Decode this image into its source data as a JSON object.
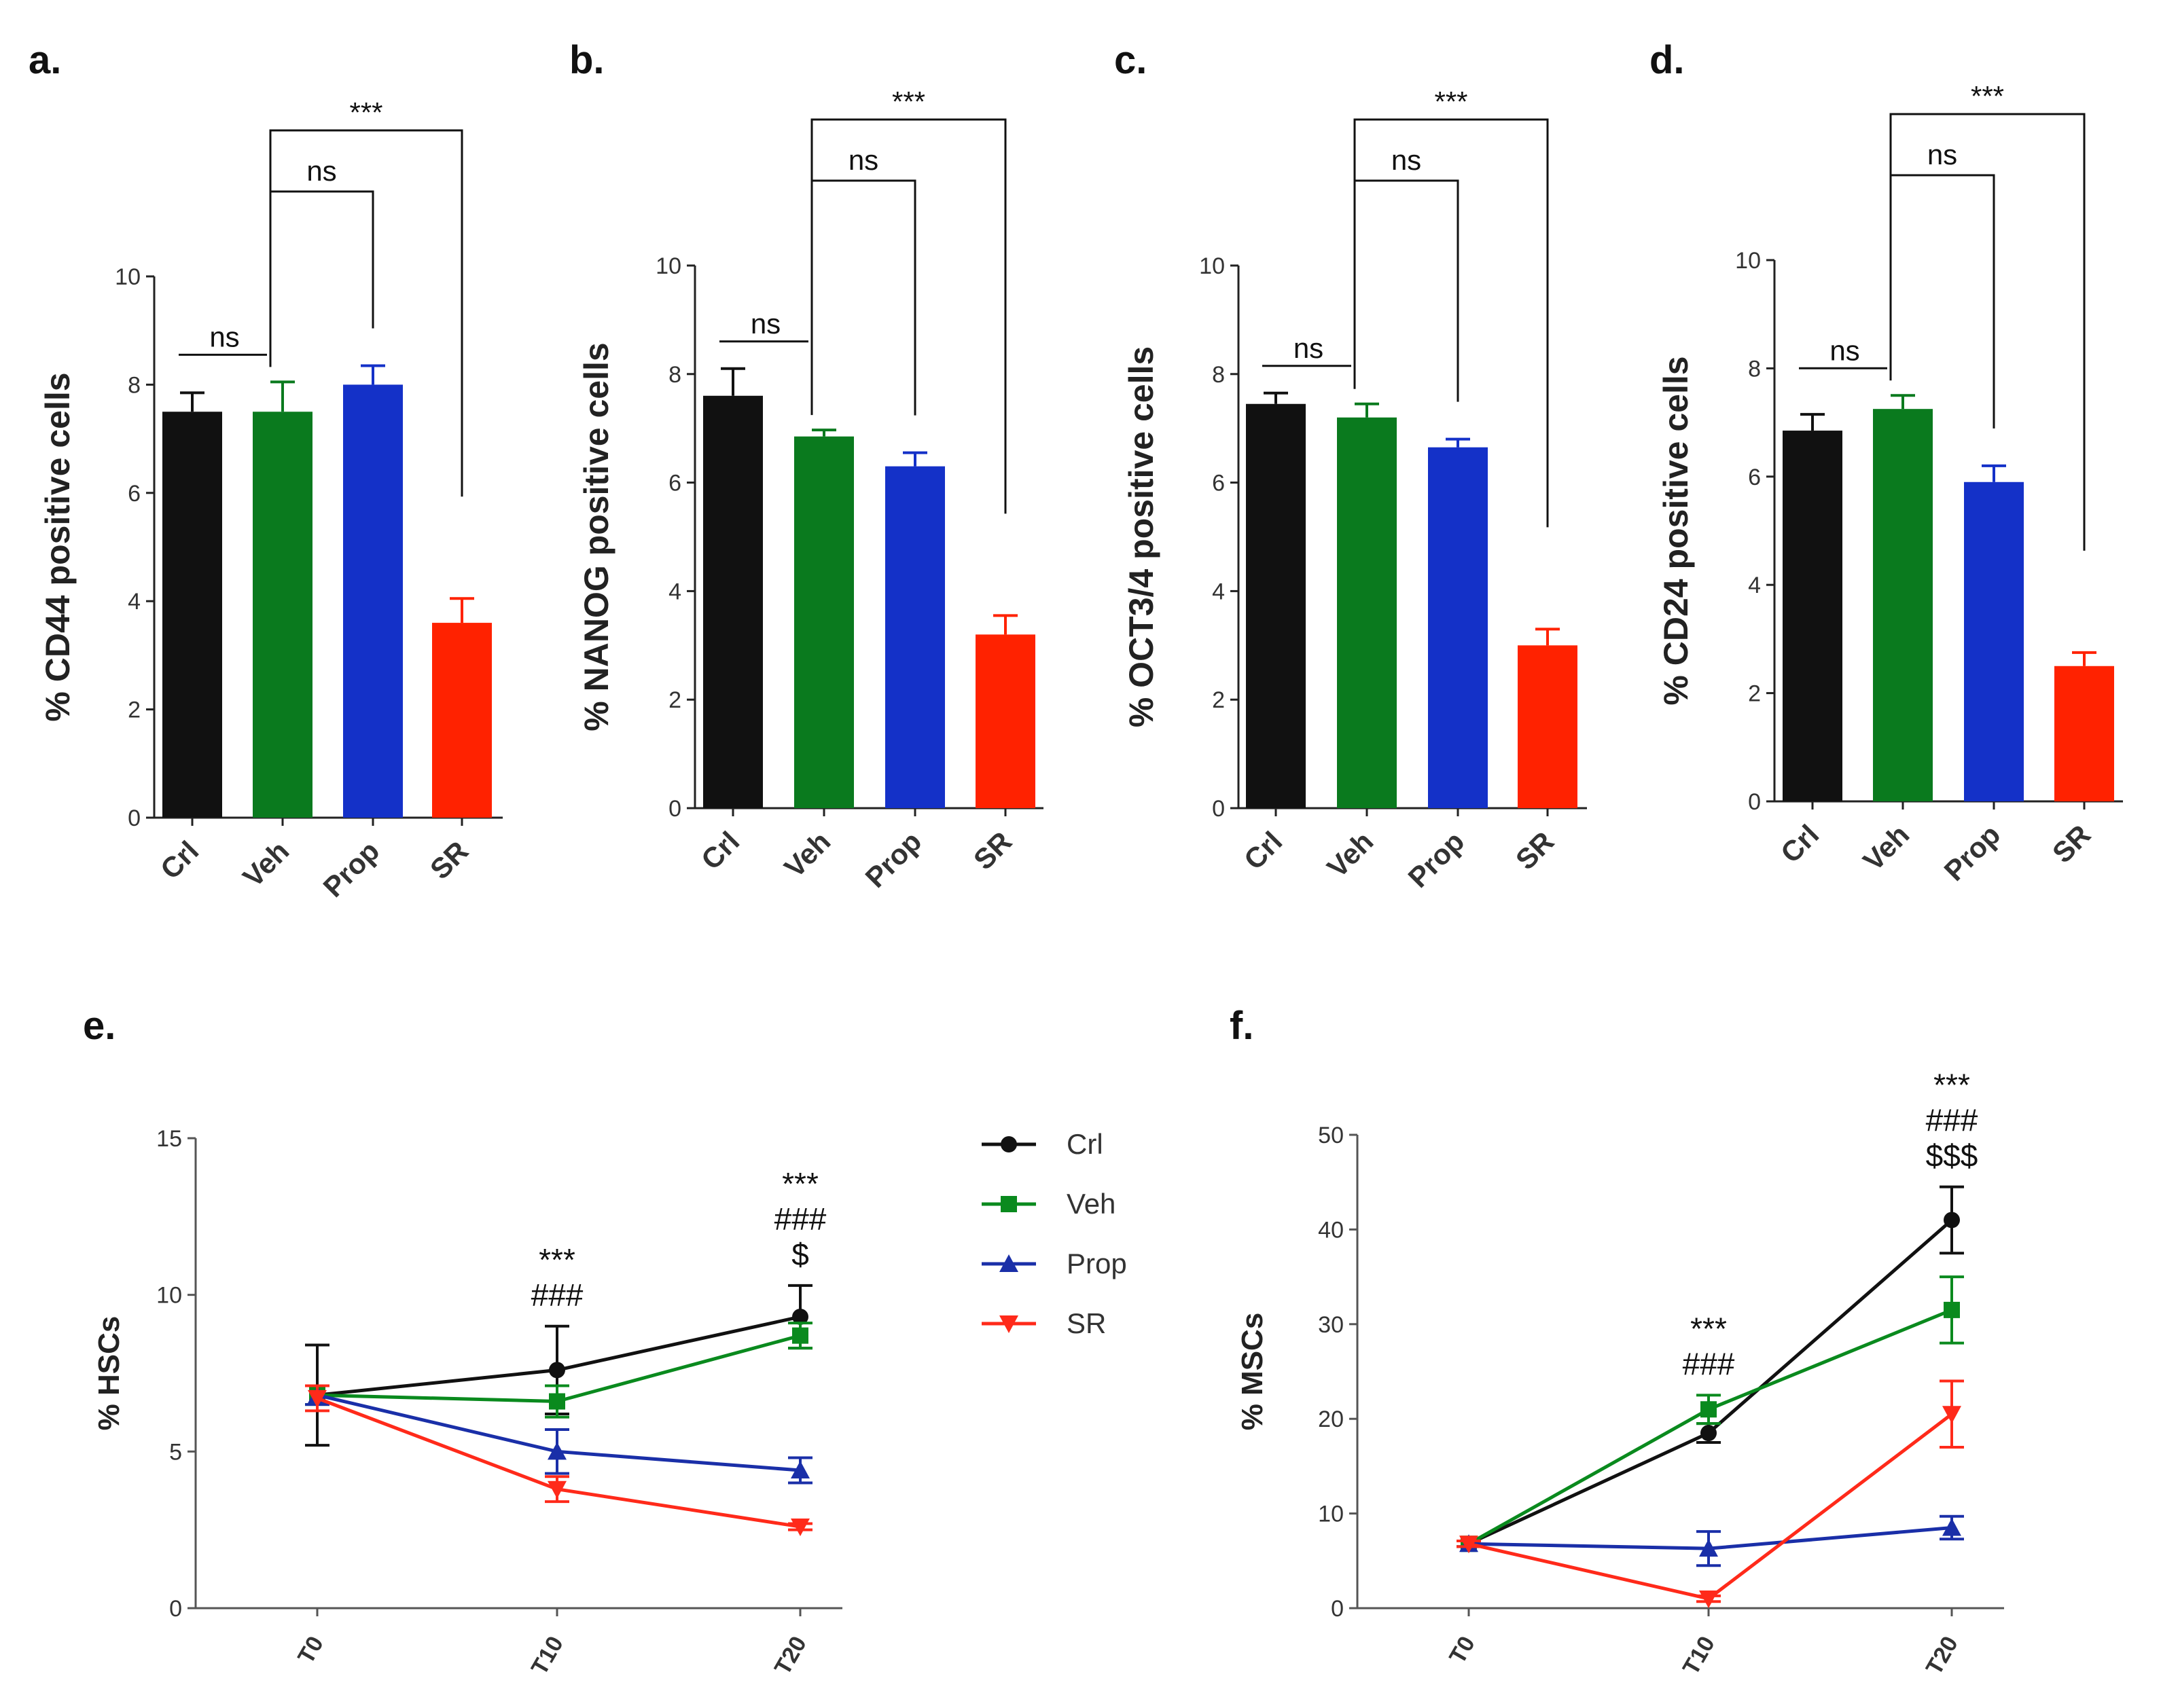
{
  "chart_data": [
    {
      "id": "a",
      "panel_label": "a.",
      "type": "bar",
      "ylabel": "% CD44 positive cells",
      "ylim": [
        0,
        10
      ],
      "yticks": [
        "0",
        "2",
        "4",
        "6",
        "8",
        "10"
      ],
      "categories": [
        "Crl",
        "Veh",
        "Prop",
        "SR"
      ],
      "values": [
        7.5,
        7.5,
        8.0,
        3.6
      ],
      "errors": [
        0.35,
        0.55,
        0.35,
        0.45
      ],
      "colors": [
        "#111111",
        "#0a7a1e",
        "#1431c8",
        "#ff2200"
      ],
      "annotations": [
        {
          "text": "***",
          "from": 1,
          "to": 3
        },
        {
          "text": "ns",
          "from": 1,
          "to": 2
        },
        {
          "text": "ns",
          "from": 0,
          "to": 1
        }
      ]
    },
    {
      "id": "b",
      "panel_label": "b.",
      "type": "bar",
      "ylabel": "% NANOG positive cells",
      "ylim": [
        0,
        10
      ],
      "yticks": [
        "0",
        "2",
        "4",
        "6",
        "8",
        "10"
      ],
      "categories": [
        "Crl",
        "Veh",
        "Prop",
        "SR"
      ],
      "values": [
        7.6,
        6.85,
        6.3,
        3.2
      ],
      "errors": [
        0.5,
        0.12,
        0.25,
        0.35
      ],
      "colors": [
        "#111111",
        "#0a7a1e",
        "#1431c8",
        "#ff2200"
      ],
      "annotations": [
        {
          "text": "***",
          "from": 1,
          "to": 3
        },
        {
          "text": "ns",
          "from": 1,
          "to": 2
        },
        {
          "text": "ns",
          "from": 0,
          "to": 1
        }
      ]
    },
    {
      "id": "c",
      "panel_label": "c.",
      "type": "bar",
      "ylabel": "% OCT3/4 positive cells",
      "ylim": [
        0,
        10
      ],
      "yticks": [
        "0",
        "2",
        "4",
        "6",
        "8",
        "10"
      ],
      "categories": [
        "Crl",
        "Veh",
        "Prop",
        "SR"
      ],
      "values": [
        7.45,
        7.2,
        6.65,
        3.0
      ],
      "errors": [
        0.2,
        0.25,
        0.15,
        0.3
      ],
      "colors": [
        "#111111",
        "#0a7a1e",
        "#1431c8",
        "#ff2200"
      ],
      "annotations": [
        {
          "text": "***",
          "from": 1,
          "to": 3
        },
        {
          "text": "ns",
          "from": 1,
          "to": 2
        },
        {
          "text": "ns",
          "from": 0,
          "to": 1
        }
      ]
    },
    {
      "id": "d",
      "panel_label": "d.",
      "type": "bar",
      "ylabel": "% CD24 positive cells",
      "ylim": [
        0,
        10
      ],
      "yticks": [
        "0",
        "2",
        "4",
        "6",
        "8",
        "10"
      ],
      "categories": [
        "Crl",
        "Veh",
        "Prop",
        "SR"
      ],
      "values": [
        6.85,
        7.25,
        5.9,
        2.5
      ],
      "errors": [
        0.3,
        0.25,
        0.3,
        0.25
      ],
      "colors": [
        "#111111",
        "#0a7a1e",
        "#1431c8",
        "#ff2200"
      ],
      "annotations": [
        {
          "text": "***",
          "from": 1,
          "to": 3
        },
        {
          "text": "ns",
          "from": 1,
          "to": 2
        },
        {
          "text": "ns",
          "from": 0,
          "to": 1
        }
      ]
    },
    {
      "id": "e",
      "panel_label": "e.",
      "type": "line",
      "ylabel": "% HSCs",
      "ylim": [
        0,
        15
      ],
      "yticks": [
        "0",
        "5",
        "10",
        "15"
      ],
      "x": [
        "T0",
        "T10",
        "T20"
      ],
      "series": [
        {
          "name": "Crl",
          "color": "#111111",
          "marker": "circle",
          "values": [
            6.8,
            7.6,
            9.3
          ],
          "errors": [
            1.6,
            1.4,
            1.0
          ]
        },
        {
          "name": "Veh",
          "color": "#0a8a1e",
          "marker": "square",
          "values": [
            6.8,
            6.6,
            8.7
          ],
          "errors": [
            0.3,
            0.5,
            0.4
          ]
        },
        {
          "name": "Prop",
          "color": "#1a2fa8",
          "marker": "triangle-up",
          "values": [
            6.8,
            5.0,
            4.4
          ],
          "errors": [
            0.3,
            0.7,
            0.4
          ]
        },
        {
          "name": "SR",
          "color": "#ff2a1a",
          "marker": "triangle-down",
          "values": [
            6.7,
            3.8,
            2.6
          ],
          "errors": [
            0.4,
            0.4,
            0.1
          ]
        }
      ],
      "annotations": [
        {
          "x": "T10",
          "lines": [
            "***",
            "###"
          ]
        },
        {
          "x": "T20",
          "lines": [
            "***",
            "###",
            "$"
          ]
        }
      ]
    },
    {
      "id": "f",
      "panel_label": "f.",
      "type": "line",
      "ylabel": "% MSCs",
      "ylim": [
        0,
        50
      ],
      "yticks": [
        "0",
        "10",
        "20",
        "30",
        "40",
        "50"
      ],
      "x": [
        "T0",
        "T10",
        "T20"
      ],
      "series": [
        {
          "name": "Crl",
          "color": "#111111",
          "marker": "circle",
          "values": [
            6.8,
            18.5,
            41.0
          ],
          "errors": [
            0.3,
            1.0,
            3.5
          ]
        },
        {
          "name": "Veh",
          "color": "#0a8a1e",
          "marker": "square",
          "values": [
            6.8,
            21.0,
            31.5
          ],
          "errors": [
            0.3,
            1.5,
            3.5
          ]
        },
        {
          "name": "Prop",
          "color": "#1a2fa8",
          "marker": "triangle-up",
          "values": [
            6.8,
            6.3,
            8.5
          ],
          "errors": [
            0.3,
            1.8,
            1.2
          ]
        },
        {
          "name": "SR",
          "color": "#ff2a1a",
          "marker": "triangle-down",
          "values": [
            6.8,
            1.0,
            20.5
          ],
          "errors": [
            0.3,
            0.3,
            3.5
          ]
        }
      ],
      "annotations": [
        {
          "x": "T10",
          "lines": [
            "***",
            "###"
          ]
        },
        {
          "x": "T20",
          "lines": [
            "***",
            "###",
            "$$$"
          ]
        }
      ]
    }
  ]
}
